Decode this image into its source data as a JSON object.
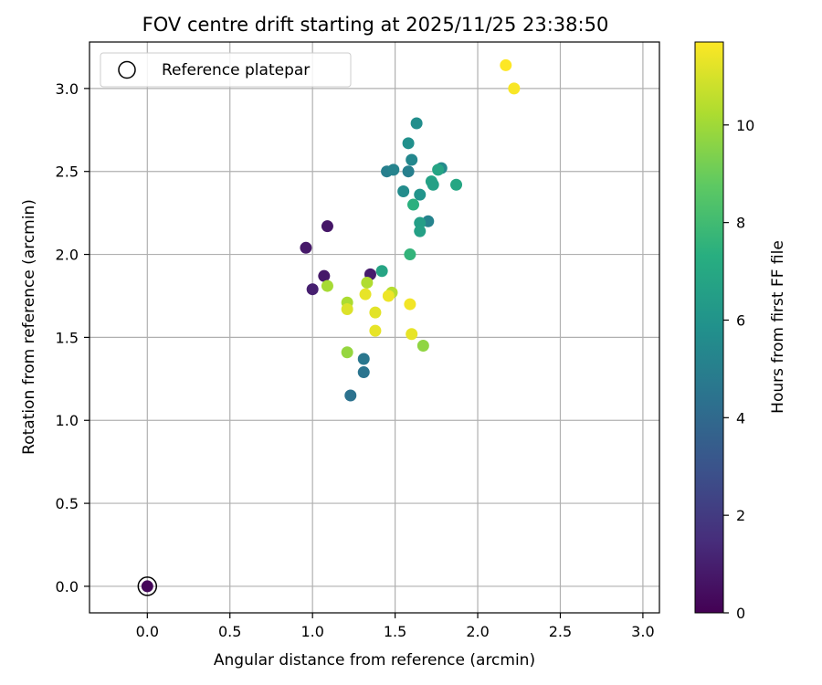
{
  "chart_data": {
    "type": "scatter",
    "title": "FOV centre drift starting at 2025/11/25 23:38:50",
    "xlabel": "Angular distance from reference (arcmin)",
    "ylabel": "Rotation from reference (arcmin)",
    "xlim": [
      -0.35,
      3.1
    ],
    "ylim": [
      -0.16,
      3.28
    ],
    "xticks": [
      0.0,
      0.5,
      1.0,
      1.5,
      2.0,
      2.5,
      3.0
    ],
    "xtick_labels": [
      "0.0",
      "0.5",
      "1.0",
      "1.5",
      "2.0",
      "2.5",
      "3.0"
    ],
    "yticks": [
      0.0,
      0.5,
      1.0,
      1.5,
      2.0,
      2.5,
      3.0
    ],
    "ytick_labels": [
      "0.0",
      "0.5",
      "1.0",
      "1.5",
      "2.0",
      "2.5",
      "3.0"
    ],
    "grid": true,
    "legend": {
      "position": "top-left",
      "label": "Reference platepar"
    },
    "reference_point": {
      "x": 0.0,
      "y": 0.0
    },
    "colorbar": {
      "label": "Hours from first FF file",
      "colormap": "viridis",
      "min": 0,
      "max": 11.7,
      "ticks": [
        0,
        2,
        4,
        6,
        8,
        10
      ],
      "tick_labels": [
        "0",
        "2",
        "4",
        "6",
        "8",
        "10"
      ]
    },
    "points": [
      {
        "x": 0.0,
        "y": 0.0,
        "hours": 0.2
      },
      {
        "x": 0.96,
        "y": 2.04,
        "hours": 0.8
      },
      {
        "x": 1.09,
        "y": 2.17,
        "hours": 0.7
      },
      {
        "x": 1.07,
        "y": 1.87,
        "hours": 0.8
      },
      {
        "x": 1.0,
        "y": 1.79,
        "hours": 1.0
      },
      {
        "x": 1.35,
        "y": 1.88,
        "hours": 0.9
      },
      {
        "x": 1.23,
        "y": 1.15,
        "hours": 4.4
      },
      {
        "x": 1.31,
        "y": 1.29,
        "hours": 4.5
      },
      {
        "x": 1.31,
        "y": 1.37,
        "hours": 4.6
      },
      {
        "x": 1.45,
        "y": 2.5,
        "hours": 5.0
      },
      {
        "x": 1.49,
        "y": 2.51,
        "hours": 5.2
      },
      {
        "x": 1.58,
        "y": 2.5,
        "hours": 5.0
      },
      {
        "x": 1.6,
        "y": 2.57,
        "hours": 5.4
      },
      {
        "x": 1.7,
        "y": 2.2,
        "hours": 5.2
      },
      {
        "x": 1.55,
        "y": 2.38,
        "hours": 5.6
      },
      {
        "x": 1.58,
        "y": 2.67,
        "hours": 5.8
      },
      {
        "x": 1.63,
        "y": 2.79,
        "hours": 5.7
      },
      {
        "x": 1.65,
        "y": 2.36,
        "hours": 6.0
      },
      {
        "x": 1.78,
        "y": 2.52,
        "hours": 5.5
      },
      {
        "x": 1.65,
        "y": 2.19,
        "hours": 6.5
      },
      {
        "x": 1.65,
        "y": 2.14,
        "hours": 6.6
      },
      {
        "x": 1.72,
        "y": 2.44,
        "hours": 6.7
      },
      {
        "x": 1.73,
        "y": 2.42,
        "hours": 6.6
      },
      {
        "x": 1.76,
        "y": 2.51,
        "hours": 6.8
      },
      {
        "x": 1.87,
        "y": 2.42,
        "hours": 6.9
      },
      {
        "x": 1.61,
        "y": 2.3,
        "hours": 7.4
      },
      {
        "x": 1.42,
        "y": 1.9,
        "hours": 6.8
      },
      {
        "x": 1.59,
        "y": 2.0,
        "hours": 7.6
      },
      {
        "x": 1.21,
        "y": 1.41,
        "hours": 9.8
      },
      {
        "x": 1.67,
        "y": 1.45,
        "hours": 9.7
      },
      {
        "x": 1.09,
        "y": 1.81,
        "hours": 10.1
      },
      {
        "x": 1.33,
        "y": 1.83,
        "hours": 10.3
      },
      {
        "x": 1.21,
        "y": 1.71,
        "hours": 10.2
      },
      {
        "x": 1.48,
        "y": 1.77,
        "hours": 10.4
      },
      {
        "x": 1.21,
        "y": 1.67,
        "hours": 11.1
      },
      {
        "x": 1.32,
        "y": 1.76,
        "hours": 11.3
      },
      {
        "x": 1.38,
        "y": 1.65,
        "hours": 11.2
      },
      {
        "x": 1.46,
        "y": 1.75,
        "hours": 11.4
      },
      {
        "x": 1.38,
        "y": 1.54,
        "hours": 11.3
      },
      {
        "x": 1.59,
        "y": 1.7,
        "hours": 11.5
      },
      {
        "x": 1.6,
        "y": 1.52,
        "hours": 11.3
      },
      {
        "x": 2.17,
        "y": 3.14,
        "hours": 11.7
      },
      {
        "x": 2.22,
        "y": 3.0,
        "hours": 11.6
      }
    ]
  }
}
